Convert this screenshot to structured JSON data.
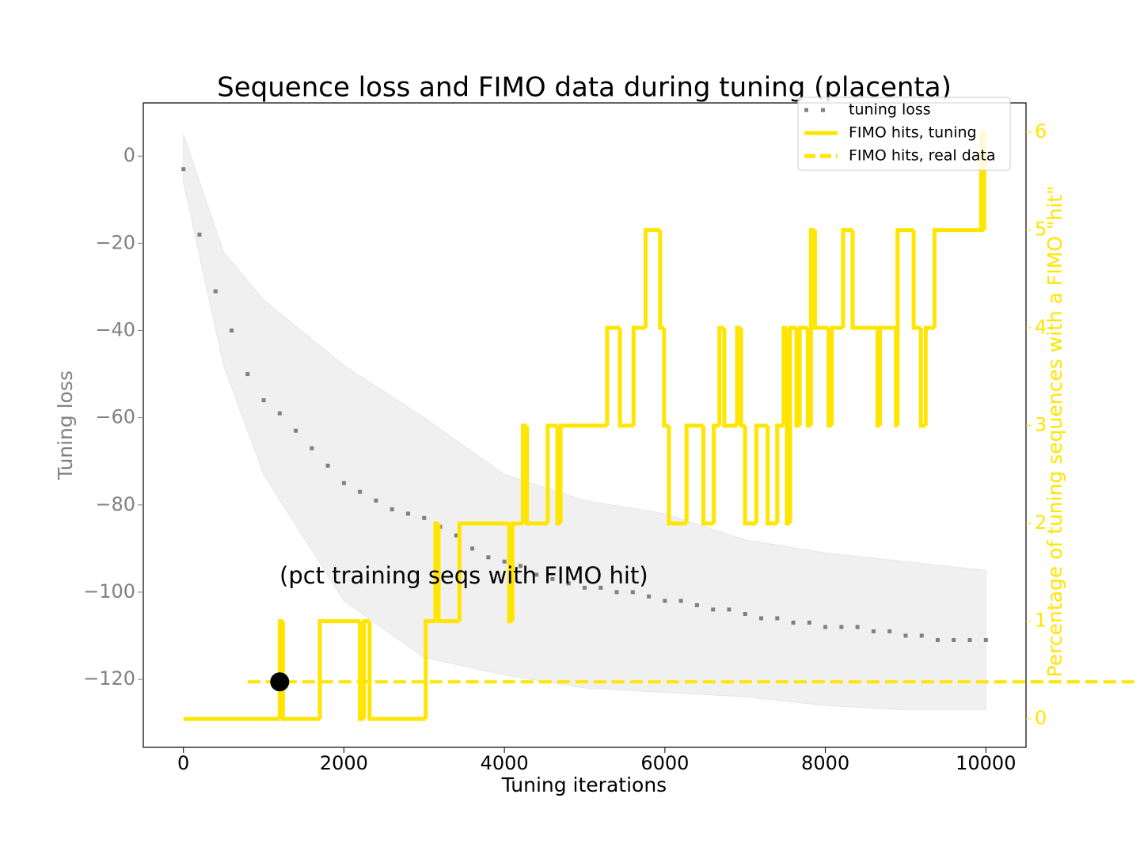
{
  "chart_data": {
    "type": "line",
    "title": "Sequence loss and FIMO data during tuning (placenta)",
    "x_label": "Tuning iterations",
    "y_label": "Tuning loss",
    "y2_label": "Percentage of tuning sequences with a FIMO \"hit\"",
    "annotation": "(pct training seqs with FIMO hit)",
    "xlim": [
      -500,
      10500
    ],
    "ylim": [
      -135.6,
      12.2
    ],
    "y2lim": [
      -0.29,
      6.3
    ],
    "xticks": [
      0,
      2000,
      4000,
      6000,
      8000,
      10000
    ],
    "yticks": [
      0,
      {
        "value": -20,
        "label": "−20"
      },
      {
        "value": -40,
        "label": "−40"
      },
      {
        "value": -60,
        "label": "−60"
      },
      {
        "value": -80,
        "label": "−80"
      },
      {
        "value": -100,
        "label": "−100"
      },
      {
        "value": -120,
        "label": "−120"
      }
    ],
    "y2ticks": [
      0,
      1,
      2,
      3,
      4,
      5,
      6
    ],
    "y_color": "#808080",
    "y2_color": "#ffe500",
    "legend": "upper right",
    "band": {
      "color": "#f0f0f0",
      "x": [
        0,
        500,
        1000,
        2000,
        3000,
        4000,
        5000,
        6000,
        7000,
        8000,
        9000,
        10000
      ],
      "upper": [
        5,
        -22,
        -33,
        -48,
        -60,
        -73,
        -79,
        -82,
        -88,
        -91,
        -93,
        -95
      ],
      "lower": [
        -6,
        -48,
        -73,
        -102,
        -115,
        -119,
        -122,
        -123,
        -124,
        -126,
        -127,
        -127
      ]
    },
    "series": [
      {
        "name": "tuning loss",
        "color": "#808080",
        "style": "dotted",
        "x": [
          0,
          200,
          400,
          600,
          800,
          1000,
          1200,
          1400,
          1600,
          1800,
          2000,
          2200,
          2400,
          2600,
          2800,
          3000,
          3200,
          3400,
          3600,
          3800,
          4000,
          4200,
          4400,
          4600,
          4800,
          5000,
          5200,
          5400,
          5600,
          5800,
          6000,
          6200,
          6400,
          6600,
          6800,
          7000,
          7200,
          7400,
          7600,
          7800,
          8000,
          8200,
          8400,
          8600,
          8800,
          9000,
          9200,
          9400,
          9600,
          9800,
          10000
        ],
        "values": [
          -3,
          -18,
          -31,
          -40,
          -50,
          -56,
          -59,
          -63,
          -67,
          -71,
          -75,
          -77,
          -79,
          -81,
          -82,
          -83,
          -85,
          -87,
          -90,
          -92,
          -93,
          -94,
          -96,
          -97,
          -98,
          -99,
          -99,
          -100,
          -100,
          -101,
          -102,
          -102,
          -103,
          -104,
          -104,
          -105,
          -106,
          -106,
          -107,
          -107,
          -108,
          -108,
          -108,
          -109,
          -109,
          -110,
          -110,
          -111,
          -111,
          -111,
          -111
        ]
      },
      {
        "name": "FIMO hits, tuning",
        "color": "#ffe500",
        "style": "step",
        "axis": "y2",
        "x": [
          0,
          1200,
          1240,
          1700,
          2200,
          2250,
          2320,
          3020,
          3140,
          3180,
          3440,
          4060,
          4100,
          4230,
          4280,
          4540,
          4660,
          4700,
          5280,
          5440,
          5610,
          5760,
          5940,
          5990,
          6050,
          6270,
          6480,
          6610,
          6680,
          6740,
          6900,
          6950,
          7000,
          7140,
          7280,
          7400,
          7480,
          7520,
          7560,
          7640,
          7680,
          7780,
          7820,
          7870,
          8040,
          8080,
          8220,
          8340,
          8650,
          8680,
          8880,
          8900,
          9100,
          9190,
          9250,
          9360,
          9940,
          9960,
          9980,
          10000
        ],
        "values": [
          0,
          1,
          0,
          1,
          0,
          1,
          0,
          1,
          2,
          1,
          2,
          1,
          2,
          3,
          2,
          3,
          2,
          3,
          4,
          3,
          4,
          5,
          4,
          3,
          2,
          3,
          2,
          3,
          4,
          3,
          4,
          3,
          2,
          3,
          2,
          3,
          4,
          2,
          4,
          3,
          4,
          3,
          5,
          4,
          3,
          4,
          5,
          4,
          3,
          4,
          3,
          5,
          4,
          3,
          4,
          5,
          6,
          5,
          6,
          6
        ]
      },
      {
        "name": "FIMO hits, real data",
        "color": "#ffe500",
        "style": "dashed",
        "axis": "y2",
        "x": [
          800,
          11900
        ],
        "values": [
          0.38,
          0.38
        ]
      }
    ],
    "marker": {
      "x": 1200,
      "y": 0.38,
      "color": "#000000"
    }
  }
}
